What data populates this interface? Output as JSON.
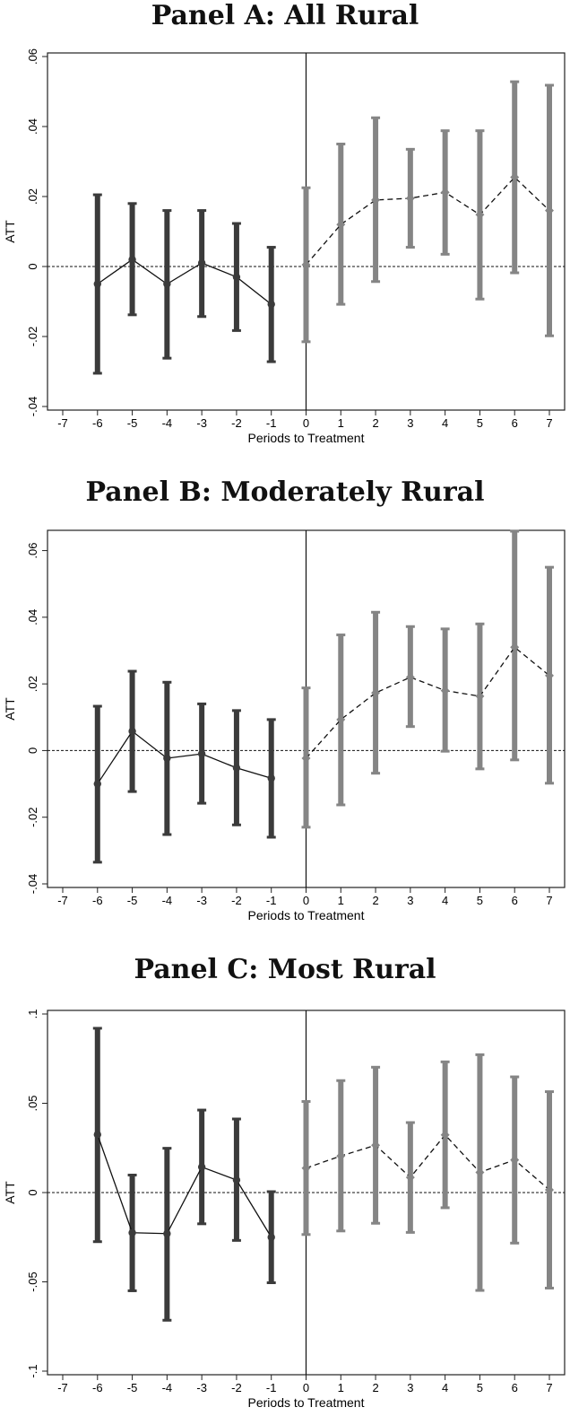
{
  "chart_data": [
    {
      "type": "scatter",
      "title": "Panel A: All Rural",
      "xlabel": "Periods to Treatment",
      "ylabel": "ATT",
      "xlim": [
        -7,
        7
      ],
      "ylim": [
        -0.04,
        0.06
      ],
      "xticks": [
        "-7",
        "-6",
        "-5",
        "-4",
        "-3",
        "-2",
        "-1",
        "0",
        "1",
        "2",
        "3",
        "4",
        "5",
        "6",
        "7"
      ],
      "yticks": [
        {
          "value": -0.04,
          "label": "-.04"
        },
        {
          "value": -0.02,
          "label": "-.02"
        },
        {
          "value": 0,
          "label": "0"
        },
        {
          "value": 0.02,
          "label": ".02"
        },
        {
          "value": 0.04,
          "label": ".04"
        },
        {
          "value": 0.06,
          "label": ".06"
        }
      ],
      "series": [
        {
          "group": "pre",
          "color": "#3b3b3b",
          "line": "solid",
          "points": [
            {
              "x": -6,
              "y": -0.005,
              "lo": -0.0305,
              "hi": 0.0205
            },
            {
              "x": -5,
              "y": 0.002,
              "lo": -0.0138,
              "hi": 0.018
            },
            {
              "x": -4,
              "y": -0.005,
              "lo": -0.0262,
              "hi": 0.016
            },
            {
              "x": -3,
              "y": 0.001,
              "lo": -0.0143,
              "hi": 0.016
            },
            {
              "x": -2,
              "y": -0.003,
              "lo": -0.0183,
              "hi": 0.0123
            },
            {
              "x": -1,
              "y": -0.0108,
              "lo": -0.0272,
              "hi": 0.0055
            }
          ]
        },
        {
          "group": "post",
          "color": "#858585",
          "line": "dashed",
          "points": [
            {
              "x": 0,
              "y": 0.0005,
              "lo": -0.0215,
              "hi": 0.0225
            },
            {
              "x": 1,
              "y": 0.012,
              "lo": -0.0108,
              "hi": 0.035
            },
            {
              "x": 2,
              "y": 0.019,
              "lo": -0.0043,
              "hi": 0.0425
            },
            {
              "x": 3,
              "y": 0.0195,
              "lo": 0.0055,
              "hi": 0.0335
            },
            {
              "x": 4,
              "y": 0.0212,
              "lo": 0.0035,
              "hi": 0.0388
            },
            {
              "x": 5,
              "y": 0.0148,
              "lo": -0.0093,
              "hi": 0.0388
            },
            {
              "x": 6,
              "y": 0.0255,
              "lo": -0.0018,
              "hi": 0.0528
            },
            {
              "x": 7,
              "y": 0.016,
              "lo": -0.0198,
              "hi": 0.0518
            }
          ]
        }
      ]
    },
    {
      "type": "scatter",
      "title": "Panel B: Moderately Rural",
      "xlabel": "Periods to Treatment",
      "ylabel": "ATT",
      "xlim": [
        -7,
        7
      ],
      "ylim": [
        -0.04,
        0.065
      ],
      "xticks": [
        "-7",
        "-6",
        "-5",
        "-4",
        "-3",
        "-2",
        "-1",
        "0",
        "1",
        "2",
        "3",
        "4",
        "5",
        "6",
        "7"
      ],
      "yticks": [
        {
          "value": -0.04,
          "label": "-.04"
        },
        {
          "value": -0.02,
          "label": "-.02"
        },
        {
          "value": 0,
          "label": "0"
        },
        {
          "value": 0.02,
          "label": ".02"
        },
        {
          "value": 0.04,
          "label": ".04"
        },
        {
          "value": 0.06,
          "label": ".06"
        }
      ],
      "series": [
        {
          "group": "pre",
          "color": "#3b3b3b",
          "line": "solid",
          "points": [
            {
              "x": -6,
              "y": -0.01,
              "lo": -0.0335,
              "hi": 0.0133
            },
            {
              "x": -5,
              "y": 0.0058,
              "lo": -0.0123,
              "hi": 0.0238
            },
            {
              "x": -4,
              "y": -0.0023,
              "lo": -0.0252,
              "hi": 0.0205
            },
            {
              "x": -3,
              "y": -0.001,
              "lo": -0.0158,
              "hi": 0.014
            },
            {
              "x": -2,
              "y": -0.0052,
              "lo": -0.0223,
              "hi": 0.012
            },
            {
              "x": -1,
              "y": -0.0083,
              "lo": -0.026,
              "hi": 0.0093
            }
          ]
        },
        {
          "group": "post",
          "color": "#858585",
          "line": "dashed",
          "points": [
            {
              "x": 0,
              "y": -0.0023,
              "lo": -0.023,
              "hi": 0.0188
            },
            {
              "x": 1,
              "y": 0.0093,
              "lo": -0.0163,
              "hi": 0.0347
            },
            {
              "x": 2,
              "y": 0.0173,
              "lo": -0.0068,
              "hi": 0.0415
            },
            {
              "x": 3,
              "y": 0.022,
              "lo": 0.0072,
              "hi": 0.0372
            },
            {
              "x": 4,
              "y": 0.018,
              "lo": -0.0002,
              "hi": 0.0365
            },
            {
              "x": 5,
              "y": 0.0163,
              "lo": -0.0055,
              "hi": 0.038
            },
            {
              "x": 6,
              "y": 0.031,
              "lo": -0.0028,
              "hi": 0.0658
            },
            {
              "x": 7,
              "y": 0.0225,
              "lo": -0.0098,
              "hi": 0.055
            }
          ]
        }
      ]
    },
    {
      "type": "scatter",
      "title": "Panel C: Most Rural",
      "xlabel": "Periods to Treatment",
      "ylabel": "ATT",
      "xlim": [
        -7,
        7
      ],
      "ylim": [
        -0.1,
        0.1
      ],
      "xticks": [
        "-7",
        "-6",
        "-5",
        "-4",
        "-3",
        "-2",
        "-1",
        "0",
        "1",
        "2",
        "3",
        "4",
        "5",
        "6",
        "7"
      ],
      "yticks": [
        {
          "value": -0.1,
          "label": "-.1"
        },
        {
          "value": -0.05,
          "label": "-.05"
        },
        {
          "value": 0,
          "label": "0"
        },
        {
          "value": 0.05,
          "label": ".05"
        },
        {
          "value": 0.1,
          "label": ".1"
        }
      ],
      "series": [
        {
          "group": "pre",
          "color": "#3b3b3b",
          "line": "solid",
          "points": [
            {
              "x": -6,
              "y": 0.0325,
              "lo": -0.0275,
              "hi": 0.092
            },
            {
              "x": -5,
              "y": -0.0225,
              "lo": -0.055,
              "hi": 0.0098
            },
            {
              "x": -4,
              "y": -0.023,
              "lo": -0.0715,
              "hi": 0.0248
            },
            {
              "x": -3,
              "y": 0.0143,
              "lo": -0.0175,
              "hi": 0.0462
            },
            {
              "x": -2,
              "y": 0.007,
              "lo": -0.0268,
              "hi": 0.0412
            },
            {
              "x": -1,
              "y": -0.025,
              "lo": -0.0505,
              "hi": 0.0005
            }
          ]
        },
        {
          "group": "post",
          "color": "#858585",
          "line": "dashed",
          "points": [
            {
              "x": 0,
              "y": 0.0137,
              "lo": -0.0235,
              "hi": 0.051
            },
            {
              "x": 1,
              "y": 0.0205,
              "lo": -0.0215,
              "hi": 0.0627
            },
            {
              "x": 2,
              "y": 0.0265,
              "lo": -0.0172,
              "hi": 0.0702
            },
            {
              "x": 3,
              "y": 0.0085,
              "lo": -0.0223,
              "hi": 0.0392
            },
            {
              "x": 4,
              "y": 0.0323,
              "lo": -0.0085,
              "hi": 0.0732
            },
            {
              "x": 5,
              "y": 0.0113,
              "lo": -0.0548,
              "hi": 0.0772
            },
            {
              "x": 6,
              "y": 0.0183,
              "lo": -0.0283,
              "hi": 0.0648
            },
            {
              "x": 7,
              "y": 0.0015,
              "lo": -0.0535,
              "hi": 0.0565
            }
          ]
        }
      ]
    }
  ]
}
